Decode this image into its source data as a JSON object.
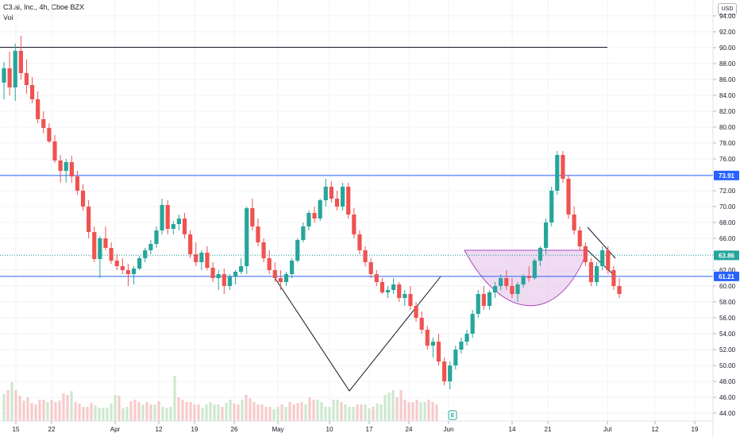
{
  "header": {
    "title": "C3.ai, Inc., 4h, Cboe BZX",
    "volume_label": "Vol",
    "currency": "USD"
  },
  "colors": {
    "up": "#26a69a",
    "down": "#ef5350",
    "vol_up": "#c8e6c9",
    "vol_down": "#f6c5c5",
    "resistance": "#2962ff",
    "black_line": "#131722",
    "pattern_fill": "#e1bee7",
    "pattern_stroke": "#ab47bc",
    "grid": "#f0f3fa",
    "axis_text": "#131722",
    "price_tag_green": "#26a69a"
  },
  "chart_data": {
    "type": "candlestick",
    "y_axis": {
      "ylim": [
        43,
        96
      ],
      "ticks": [
        "44.00",
        "46.00",
        "48.00",
        "50.00",
        "52.00",
        "54.00",
        "56.00",
        "58.00",
        "60.00",
        "62.00",
        "64.00",
        "66.00",
        "68.00",
        "70.00",
        "72.00",
        "74.00",
        "76.00",
        "78.00",
        "80.00",
        "82.00",
        "84.00",
        "86.00",
        "88.00",
        "90.00",
        "92.00",
        "94.00"
      ]
    },
    "x_axis": {
      "tick_labels": [
        "15",
        "22",
        "Apr",
        "12",
        "19",
        "26",
        "May",
        "10",
        "17",
        "24",
        "Jun",
        "14",
        "21",
        "Jul",
        "12",
        "19"
      ],
      "tick_positions_index": [
        3,
        12,
        28,
        39,
        48,
        58,
        69,
        82,
        92,
        102,
        112,
        128,
        137,
        152,
        164,
        174
      ]
    },
    "price_tags": [
      {
        "label": "73.91",
        "value": 73.91,
        "color": "#2962ff"
      },
      {
        "label": "63.86",
        "value": 63.86,
        "color": "#26a69a"
      },
      {
        "label": "61.21",
        "value": 61.21,
        "color": "#2962ff"
      }
    ],
    "horizontal_lines": [
      {
        "value": 90.05,
        "x_start_index": 0,
        "x_end_index": 152,
        "color": "#131722"
      },
      {
        "value": 73.91,
        "x_start_index": 0,
        "x_end_index": 183,
        "color": "#2962ff"
      },
      {
        "value": 61.21,
        "x_start_index": 0,
        "x_end_index": 183,
        "color": "#2962ff"
      }
    ],
    "dotted_line": {
      "value": 63.86,
      "color": "#26a69a"
    },
    "candles": [
      [
        85.6,
        88.2,
        83.5,
        87.4
      ],
      [
        87.4,
        89.5,
        84.0,
        85.0
      ],
      [
        85.0,
        90.5,
        83.3,
        89.6
      ],
      [
        89.6,
        91.5,
        86.0,
        86.8
      ],
      [
        86.8,
        88.5,
        84.2,
        85.3
      ],
      [
        85.3,
        86.3,
        83.0,
        83.5
      ],
      [
        83.5,
        84.5,
        80.5,
        81.0
      ],
      [
        81.0,
        82.0,
        79.2,
        79.9
      ],
      [
        79.9,
        80.5,
        78.0,
        78.2
      ],
      [
        78.2,
        79.0,
        75.5,
        75.8
      ],
      [
        75.8,
        76.5,
        73.0,
        74.5
      ],
      [
        74.5,
        76.0,
        73.0,
        75.6
      ],
      [
        75.6,
        76.4,
        73.0,
        73.8
      ],
      [
        73.8,
        74.5,
        71.5,
        72.0
      ],
      [
        72.0,
        72.8,
        69.5,
        70.0
      ],
      [
        70.0,
        70.8,
        66.0,
        66.8
      ],
      [
        66.8,
        67.5,
        63.0,
        63.4
      ],
      [
        63.4,
        66.3,
        61.0,
        66.0
      ],
      [
        66.0,
        67.5,
        64.5,
        64.8
      ],
      [
        64.8,
        65.5,
        62.8,
        63.2
      ],
      [
        63.2,
        64.0,
        62.0,
        62.5
      ],
      [
        62.5,
        63.5,
        61.5,
        62.0
      ],
      [
        62.0,
        62.8,
        60.0,
        61.5
      ],
      [
        61.5,
        62.5,
        60.2,
        62.2
      ],
      [
        62.2,
        63.8,
        62.0,
        63.5
      ],
      [
        63.5,
        64.8,
        63.0,
        64.5
      ],
      [
        64.5,
        65.8,
        64.0,
        65.3
      ],
      [
        65.3,
        67.5,
        64.8,
        67.0
      ],
      [
        67.0,
        71.0,
        66.5,
        70.2
      ],
      [
        70.2,
        70.8,
        66.5,
        67.2
      ],
      [
        67.2,
        68.2,
        66.5,
        67.8
      ],
      [
        67.8,
        69.0,
        67.0,
        68.5
      ],
      [
        68.5,
        69.2,
        66.0,
        66.5
      ],
      [
        66.5,
        67.0,
        63.5,
        64.0
      ],
      [
        64.0,
        65.5,
        62.5,
        63.0
      ],
      [
        63.0,
        64.5,
        62.0,
        64.2
      ],
      [
        64.2,
        65.0,
        62.0,
        62.3
      ],
      [
        62.3,
        63.0,
        60.5,
        61.0
      ],
      [
        61.0,
        62.0,
        59.5,
        61.5
      ],
      [
        61.5,
        62.2,
        59.0,
        60.0
      ],
      [
        60.0,
        61.5,
        59.5,
        61.2
      ],
      [
        61.2,
        62.0,
        60.2,
        61.8
      ],
      [
        61.8,
        63.5,
        61.5,
        62.5
      ],
      [
        62.5,
        70.0,
        61.5,
        69.8
      ],
      [
        69.8,
        71.0,
        67.0,
        67.5
      ],
      [
        67.5,
        68.5,
        65.0,
        65.5
      ],
      [
        65.5,
        66.0,
        63.0,
        63.5
      ],
      [
        63.5,
        64.5,
        61.5,
        62.0
      ],
      [
        62.0,
        63.0,
        60.5,
        61.0
      ],
      [
        61.0,
        62.0,
        59.5,
        60.5
      ],
      [
        60.5,
        61.8,
        60.0,
        61.5
      ],
      [
        61.5,
        63.5,
        61.0,
        63.2
      ],
      [
        63.2,
        66.0,
        63.0,
        65.8
      ],
      [
        65.8,
        68.0,
        65.5,
        67.5
      ],
      [
        67.5,
        69.5,
        67.0,
        69.2
      ],
      [
        69.2,
        70.0,
        68.0,
        68.5
      ],
      [
        68.5,
        71.0,
        68.2,
        70.8
      ],
      [
        70.8,
        73.5,
        70.0,
        72.5
      ],
      [
        72.5,
        73.2,
        70.5,
        71.0
      ],
      [
        71.0,
        72.0,
        69.5,
        70.0
      ],
      [
        70.0,
        73.0,
        69.5,
        72.5
      ],
      [
        72.5,
        73.0,
        68.5,
        69.0
      ],
      [
        69.0,
        69.8,
        66.0,
        66.5
      ],
      [
        66.5,
        67.0,
        64.0,
        64.5
      ],
      [
        64.5,
        65.0,
        62.5,
        63.0
      ],
      [
        63.0,
        63.5,
        61.0,
        61.5
      ],
      [
        61.5,
        62.0,
        60.0,
        60.5
      ],
      [
        60.5,
        61.0,
        59.0,
        59.2
      ],
      [
        59.2,
        60.0,
        58.5,
        59.5
      ],
      [
        59.5,
        61.0,
        59.0,
        60.2
      ],
      [
        60.2,
        60.5,
        58.0,
        58.5
      ],
      [
        58.5,
        59.5,
        57.5,
        59.0
      ],
      [
        59.0,
        60.0,
        57.0,
        57.5
      ],
      [
        57.5,
        58.0,
        55.5,
        56.0
      ],
      [
        56.0,
        56.8,
        54.0,
        54.5
      ],
      [
        54.5,
        55.0,
        52.0,
        52.5
      ],
      [
        52.5,
        53.5,
        51.0,
        53.0
      ],
      [
        53.0,
        54.0,
        50.0,
        50.5
      ],
      [
        50.5,
        51.0,
        47.5,
        48.0
      ],
      [
        48.0,
        50.5,
        47.0,
        50.0
      ],
      [
        50.0,
        52.5,
        49.5,
        52.0
      ],
      [
        52.0,
        53.5,
        51.5,
        53.0
      ],
      [
        53.0,
        54.5,
        52.5,
        54.0
      ],
      [
        54.0,
        57.0,
        53.5,
        56.5
      ],
      [
        56.5,
        59.5,
        56.0,
        59.0
      ],
      [
        59.0,
        60.0,
        57.0,
        57.5
      ],
      [
        57.5,
        59.5,
        57.0,
        59.2
      ],
      [
        59.2,
        60.5,
        58.5,
        60.0
      ],
      [
        60.0,
        61.5,
        59.5,
        61.0
      ],
      [
        61.0,
        62.0,
        59.5,
        60.0
      ],
      [
        60.0,
        61.0,
        58.5,
        59.0
      ],
      [
        59.0,
        60.5,
        58.0,
        60.2
      ],
      [
        60.2,
        61.5,
        59.8,
        61.2
      ],
      [
        61.2,
        62.5,
        60.5,
        61.0
      ],
      [
        61.0,
        63.5,
        60.8,
        63.2
      ],
      [
        63.2,
        65.0,
        62.5,
        64.8
      ],
      [
        64.8,
        68.5,
        64.0,
        68.0
      ],
      [
        68.0,
        72.5,
        67.5,
        72.0
      ],
      [
        72.0,
        77.0,
        71.5,
        76.5
      ],
      [
        76.5,
        77.0,
        73.0,
        73.5
      ],
      [
        73.5,
        74.0,
        68.5,
        69.0
      ],
      [
        69.0,
        70.0,
        66.5,
        67.0
      ],
      [
        67.0,
        67.5,
        64.5,
        65.0
      ],
      [
        65.0,
        65.5,
        62.5,
        63.0
      ],
      [
        63.0,
        63.5,
        60.0,
        60.5
      ],
      [
        60.5,
        63.0,
        60.0,
        62.5
      ],
      [
        62.5,
        65.0,
        62.0,
        64.5
      ],
      [
        64.5,
        65.0,
        61.5,
        62.0
      ],
      [
        62.0,
        62.5,
        59.5,
        60.0
      ],
      [
        60.0,
        61.0,
        58.5,
        59.0
      ]
    ],
    "volume_scale_max": 1.0
  }
}
